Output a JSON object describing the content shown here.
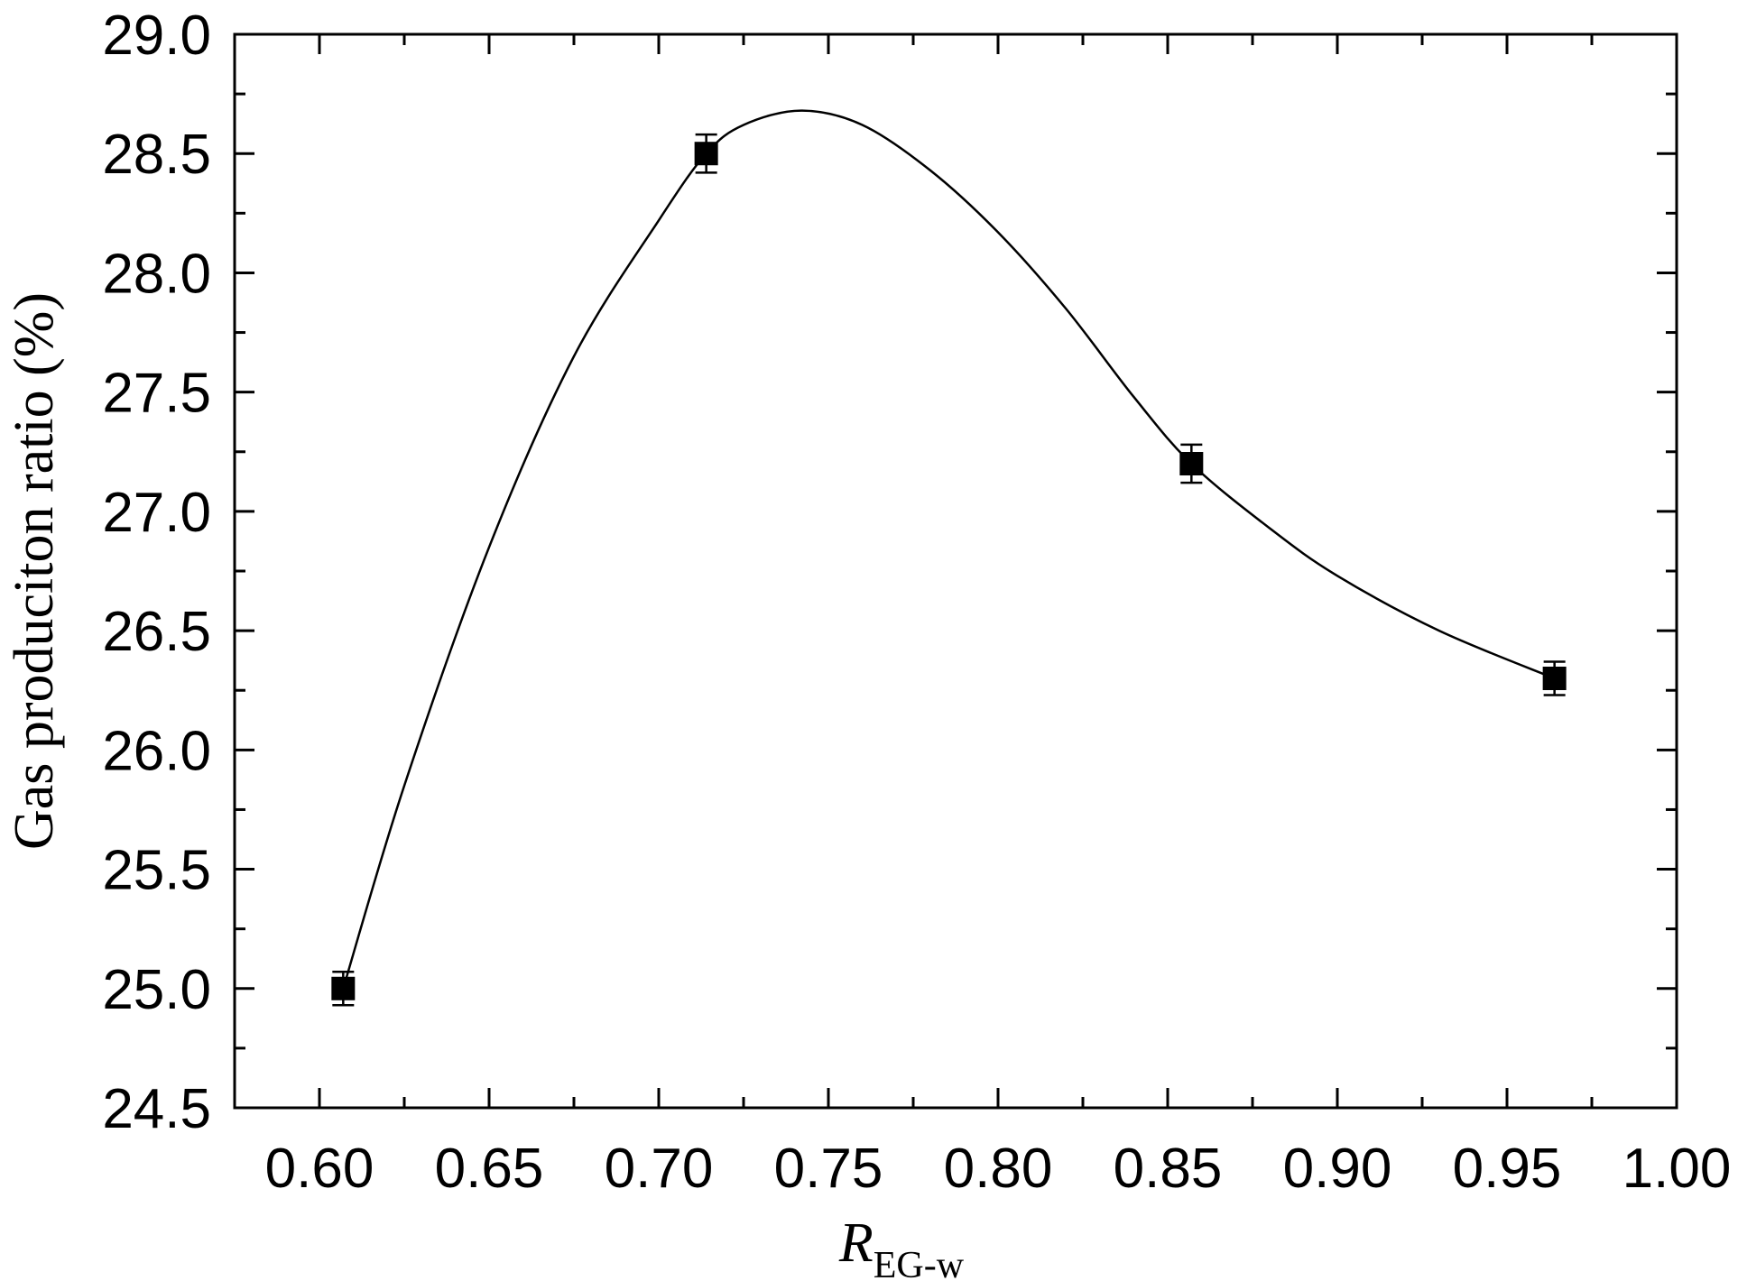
{
  "chart_data": {
    "type": "scatter",
    "xlabel_main": "R",
    "xlabel_sub": "EG-w",
    "ylabel": "Gas produciton ratio (%)",
    "xlim": [
      0.575,
      1.0
    ],
    "ylim": [
      24.5,
      29.0
    ],
    "x_ticks": [
      "0.60",
      "0.65",
      "0.70",
      "0.75",
      "0.80",
      "0.85",
      "0.90",
      "0.95",
      "1.00"
    ],
    "y_ticks": [
      "24.5",
      "25.0",
      "25.5",
      "26.0",
      "26.5",
      "27.0",
      "27.5",
      "28.0",
      "28.5",
      "29.0"
    ],
    "points": [
      {
        "x": 0.607,
        "y": 25.0,
        "err": 0.07
      },
      {
        "x": 0.714,
        "y": 28.5,
        "err": 0.08
      },
      {
        "x": 0.857,
        "y": 27.2,
        "err": 0.08
      },
      {
        "x": 0.964,
        "y": 26.3,
        "err": 0.07
      }
    ],
    "fit_curve": {
      "x": [
        0.607,
        0.625,
        0.65,
        0.675,
        0.7,
        0.714,
        0.725,
        0.742,
        0.76,
        0.78,
        0.8,
        0.82,
        0.84,
        0.857,
        0.88,
        0.9,
        0.93,
        0.964
      ],
      "y": [
        25.0,
        25.85,
        26.85,
        27.65,
        28.22,
        28.5,
        28.62,
        28.68,
        28.62,
        28.43,
        28.17,
        27.85,
        27.48,
        27.2,
        26.93,
        26.73,
        26.5,
        26.3
      ]
    },
    "grid": false,
    "colors": {
      "marker": "#000000",
      "line": "#000000"
    }
  }
}
